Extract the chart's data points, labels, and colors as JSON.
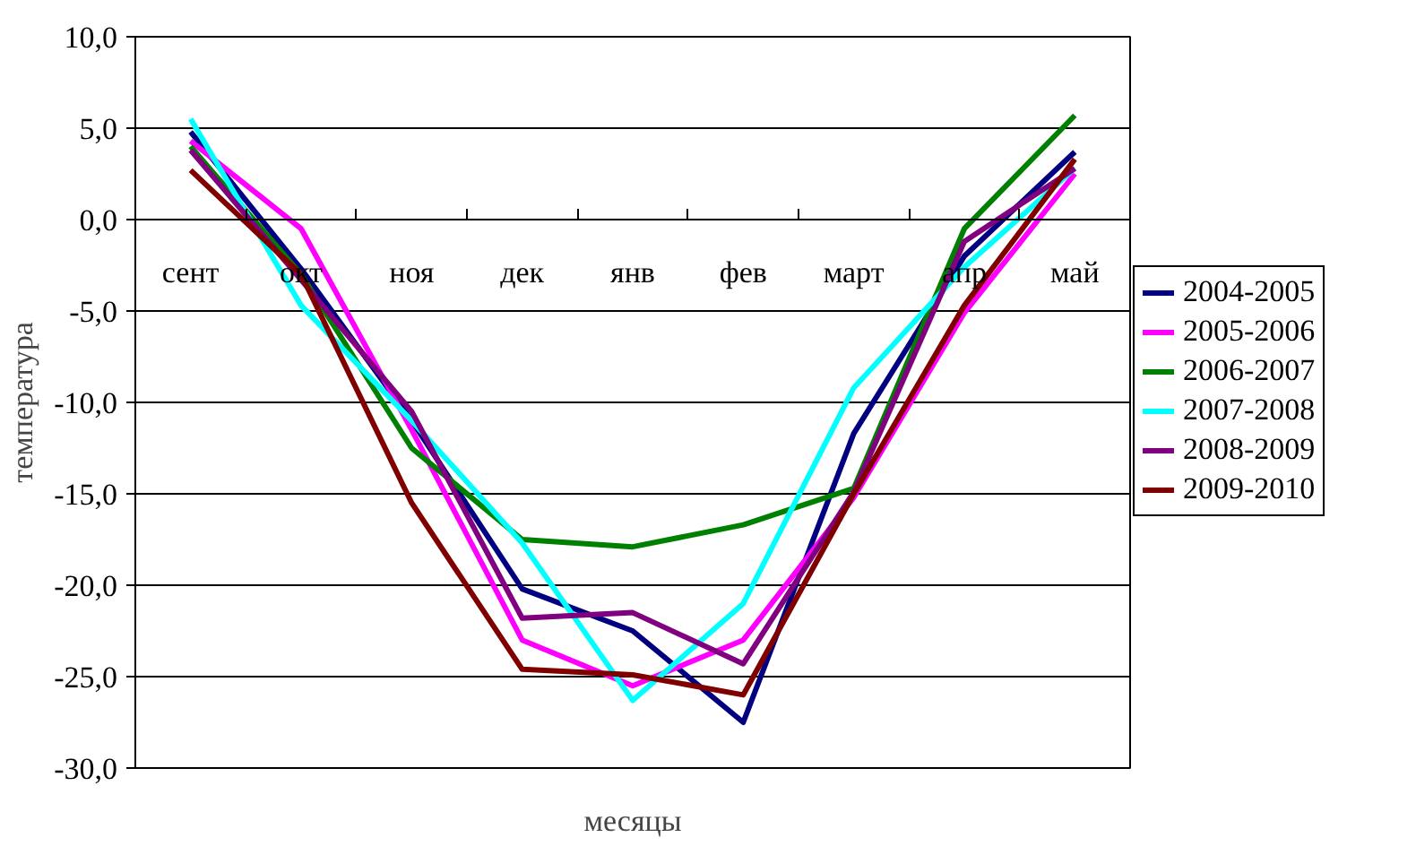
{
  "chart_data": {
    "type": "line",
    "xlabel": "месяцы",
    "ylabel": "температура",
    "categories": [
      "сент",
      "окт",
      "ноя",
      "дек",
      "янв",
      "фев",
      "март",
      "апр",
      "май"
    ],
    "series": [
      {
        "name": "2004-2005",
        "color": "#000080",
        "values": [
          4.8,
          -2.7,
          -11.0,
          -20.2,
          -22.5,
          -27.5,
          -11.7,
          -2.0,
          3.7
        ]
      },
      {
        "name": "2005-2006",
        "color": "#ff00ff",
        "values": [
          4.3,
          -0.5,
          -11.5,
          -23.0,
          -25.5,
          -23.0,
          -15.2,
          -5.1,
          2.5
        ]
      },
      {
        "name": "2006-2007",
        "color": "#008000",
        "values": [
          4.0,
          -3.0,
          -12.5,
          -17.5,
          -17.9,
          -16.7,
          -14.7,
          -0.5,
          5.7
        ]
      },
      {
        "name": "2007-2008",
        "color": "#00ffff",
        "values": [
          5.5,
          -4.7,
          -11.0,
          -17.7,
          -26.3,
          -21.0,
          -9.2,
          -2.6,
          2.8
        ]
      },
      {
        "name": "2008-2009",
        "color": "#800080",
        "values": [
          3.8,
          -3.3,
          -10.5,
          -21.8,
          -21.5,
          -24.3,
          -14.9,
          -1.2,
          2.8
        ]
      },
      {
        "name": "2009-2010",
        "color": "#800000",
        "values": [
          2.7,
          -3.0,
          -15.5,
          -24.6,
          -24.9,
          -26.0,
          -15.0,
          -4.7,
          3.3
        ]
      }
    ],
    "ylim": [
      -30,
      10
    ],
    "yticks": [
      {
        "value": -30,
        "label": "-30,0"
      },
      {
        "value": -25,
        "label": "-25,0"
      },
      {
        "value": -20,
        "label": "-20,0"
      },
      {
        "value": -15,
        "label": "-15,0"
      },
      {
        "value": -10,
        "label": "-10,0"
      },
      {
        "value": -5,
        "label": "-5,0"
      },
      {
        "value": 0,
        "label": "0,0"
      },
      {
        "value": 5,
        "label": "5,0"
      },
      {
        "value": 10,
        "label": "10,0"
      }
    ],
    "grid": "y",
    "legend": "right",
    "marker": "none",
    "line_style": "solid"
  }
}
